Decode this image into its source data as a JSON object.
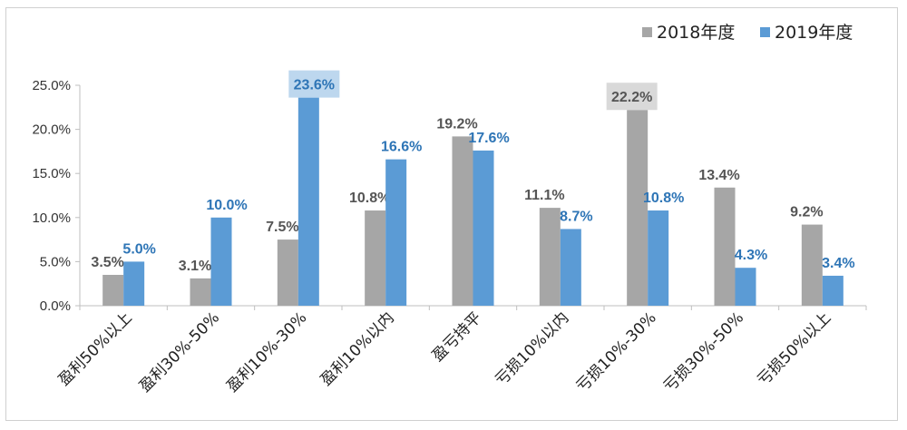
{
  "chart_data": {
    "type": "bar",
    "categories": [
      "盈利50%以上",
      "盈利30%-50%",
      "盈利10%-30%",
      "盈利10%以内",
      "盈亏持平",
      "亏损10%以内",
      "亏损10%-30%",
      "亏损30%-50%",
      "亏损50%以上"
    ],
    "series": [
      {
        "name": "2018年度",
        "values": [
          3.5,
          3.1,
          7.5,
          10.8,
          19.2,
          11.1,
          22.2,
          13.4,
          9.2
        ],
        "labels": [
          "3.5%",
          "3.1%",
          "7.5%",
          "10.8%",
          "19.2%",
          "11.1%",
          "22.2%",
          "13.4%",
          "9.2%"
        ],
        "color": "#a6a6a6",
        "label_color": "#555555"
      },
      {
        "name": "2019年度",
        "values": [
          5.0,
          10.0,
          23.6,
          16.6,
          17.6,
          8.7,
          10.8,
          4.3,
          3.4
        ],
        "labels": [
          "5.0%",
          "10.0%",
          "23.6%",
          "16.6%",
          "17.6%",
          "8.7%",
          "10.8%",
          "4.3%",
          "3.4%"
        ],
        "color": "#5b9bd5",
        "label_color": "#2e75b6"
      }
    ],
    "yticks": [
      "0.0%",
      "5.0%",
      "10.0%",
      "15.0%",
      "20.0%",
      "25.0%"
    ],
    "ylim": [
      0,
      25
    ],
    "grid": false,
    "legend": "top-right",
    "highlights": [
      {
        "series": 1,
        "index": 2,
        "fill": "#bdd7ee"
      },
      {
        "series": 0,
        "index": 6,
        "fill": "#d9d9d9"
      }
    ]
  }
}
